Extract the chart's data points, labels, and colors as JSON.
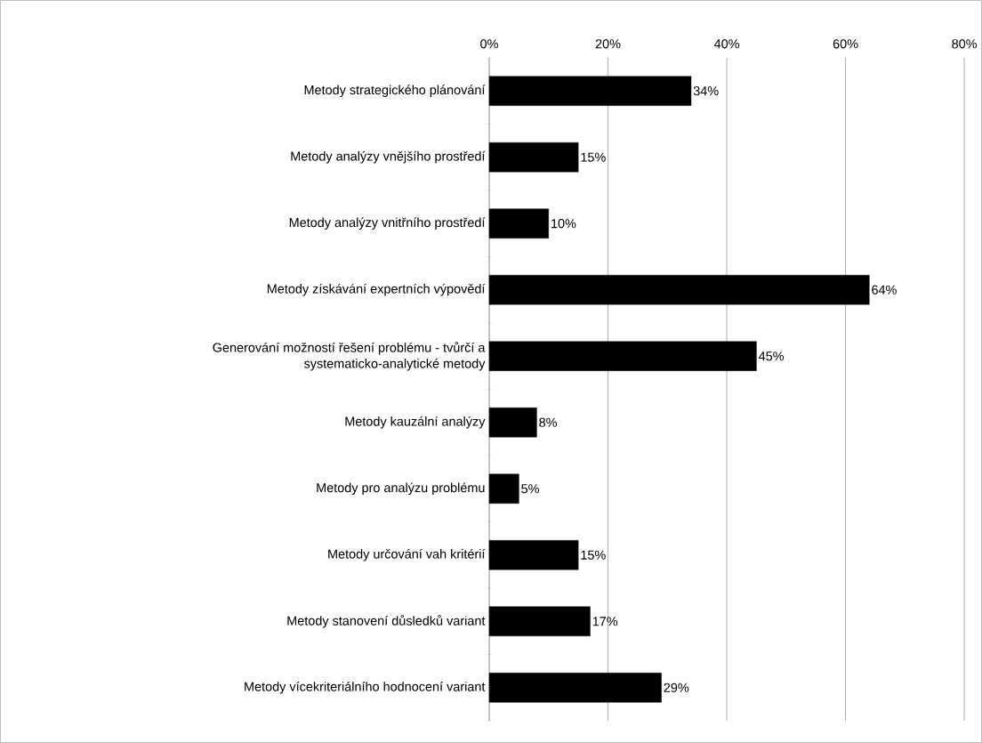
{
  "chart_data": {
    "type": "bar",
    "orientation": "horizontal",
    "categories": [
      "Metody strategického plánování",
      "Metody analýzy vnějšího prostředí",
      "Metody analýzy vnitřního prostředí",
      "Metody získávání expertních výpovědí",
      "Generování možností řešení problému - tvůrčí a systematicko-analytické metody",
      "Metody kauzální analýzy",
      "Metody pro analýzu problému",
      "Metody určování vah kritérií",
      "Metody stanovení důsledků variant",
      "Metody vícekriteriálního hodnocení variant"
    ],
    "values": [
      34,
      15,
      10,
      64,
      45,
      8,
      5,
      15,
      17,
      29
    ],
    "value_labels": [
      "34%",
      "15%",
      "10%",
      "64%",
      "45%",
      "8%",
      "5%",
      "15%",
      "17%",
      "29%"
    ],
    "color": "#000000",
    "xlim": [
      0,
      80
    ],
    "xticks": [
      {
        "value": 0,
        "label": "0%"
      },
      {
        "value": 20,
        "label": "20%"
      },
      {
        "value": 40,
        "label": "40%"
      },
      {
        "value": 60,
        "label": "60%"
      },
      {
        "value": 80,
        "label": "80%"
      }
    ],
    "grid": "x"
  }
}
